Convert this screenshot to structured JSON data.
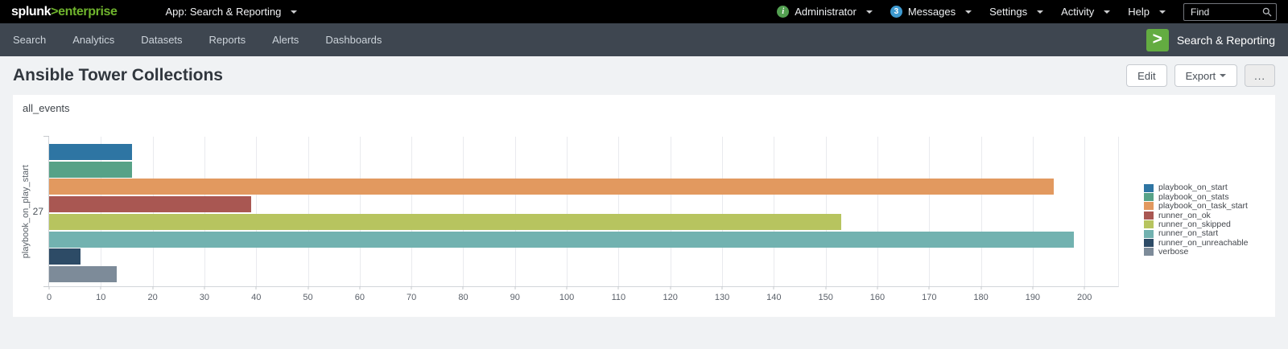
{
  "topbar": {
    "logo": {
      "splunk": "splunk",
      "chevron": ">",
      "product": "enterprise"
    },
    "app_menu": "App: Search & Reporting",
    "info_icon_glyph": "i",
    "user_menu": "Administrator",
    "messages_count": "3",
    "messages_label": "Messages",
    "settings_label": "Settings",
    "activity_label": "Activity",
    "help_label": "Help",
    "find_placeholder": "Find"
  },
  "appbar": {
    "nav": [
      "Search",
      "Analytics",
      "Datasets",
      "Reports",
      "Alerts",
      "Dashboards"
    ],
    "app_icon_glyph": ">",
    "app_name": "Search & Reporting"
  },
  "header": {
    "title": "Ansible Tower Collections",
    "edit_label": "Edit",
    "export_label": "Export",
    "more_label": "..."
  },
  "colors": {
    "splunk_green": "#6fb42d",
    "app_icon_green": "#63ac41",
    "info_green": "#53a051",
    "messages_blue": "#3e9ad0",
    "appbar_bg": "#3e4650",
    "topbar_bg": "#000000"
  },
  "chart_data": {
    "type": "bar",
    "orientation": "horizontal",
    "title": "all_events",
    "category_axis_label": "playbook_on_play_start",
    "categories": [
      "27"
    ],
    "series": [
      {
        "name": "playbook_on_start",
        "color": "#2e75a3",
        "values": [
          16
        ]
      },
      {
        "name": "playbook_on_stats",
        "color": "#57a287",
        "values": [
          16
        ]
      },
      {
        "name": "playbook_on_task_start",
        "color": "#e2995f",
        "values": [
          194
        ]
      },
      {
        "name": "runner_on_ok",
        "color": "#a95752",
        "values": [
          39
        ]
      },
      {
        "name": "runner_on_skipped",
        "color": "#b7c45f",
        "values": [
          153
        ]
      },
      {
        "name": "runner_on_start",
        "color": "#72b2b0",
        "values": [
          198
        ]
      },
      {
        "name": "runner_on_unreachable",
        "color": "#2d4b66",
        "values": [
          6
        ]
      },
      {
        "name": "verbose",
        "color": "#7d8b99",
        "values": [
          13
        ]
      }
    ],
    "xlim": [
      0,
      200
    ],
    "x_ticks": [
      0,
      10,
      20,
      30,
      40,
      50,
      60,
      70,
      80,
      90,
      100,
      110,
      120,
      130,
      140,
      150,
      160,
      170,
      180,
      190,
      200
    ],
    "grid": "vertical",
    "legend_position": "right"
  }
}
